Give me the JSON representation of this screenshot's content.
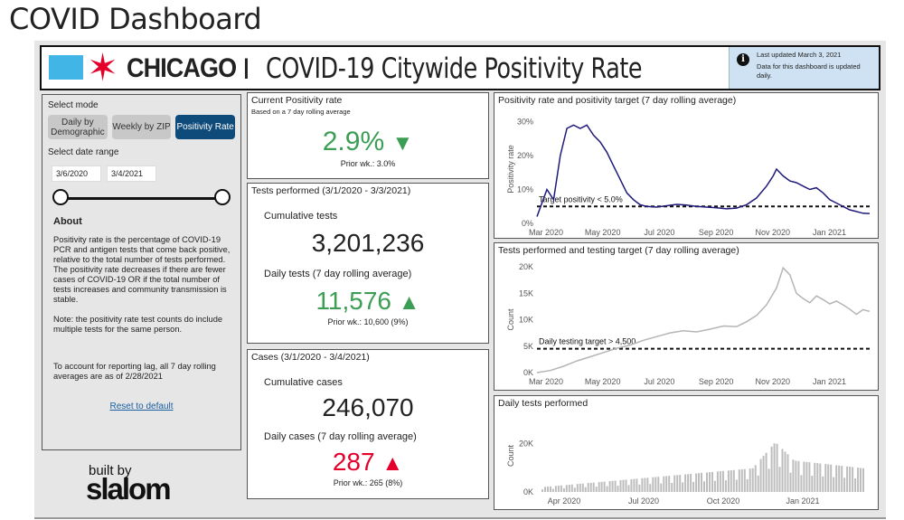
{
  "page": {
    "title": "COVID Dashboard"
  },
  "header": {
    "city": "CHICAGO",
    "separator": "I",
    "title": "COVID-19 Citywide Positivity Rate",
    "last_updated": "Last updated March 3, 2021",
    "update_note": "Data for this dashboard is updated daily."
  },
  "sidebar": {
    "mode_label": "Select mode",
    "modes": [
      {
        "label": "Daily by Demographic",
        "active": false
      },
      {
        "label": "Weekly by ZIP",
        "active": false
      },
      {
        "label": "Positivity Rate",
        "active": true
      }
    ],
    "date_label": "Select date range",
    "date_start": "3/6/2020",
    "date_end": "3/4/2021",
    "about_title": "About",
    "about_text": "Positivity rate is the percentage of COVID-19 PCR and antigen tests that come back positive, relative to the total number of tests performed.  The positivity rate decreases if there are fewer cases of COVID-19 OR if the total number of tests increases and community transmission is stable.",
    "note_text": "Note: the positivity rate test counts do include multiple tests for the same person.",
    "lag_text": "To account for reporting lag, all 7 day rolling averages are as of 2/28/2021",
    "reset_label": "Reset to default"
  },
  "positivity": {
    "title": "Current Positivity rate",
    "subtitle": "Based on a 7 day rolling average",
    "value": "2.9%",
    "arrow": "▼",
    "prior": "Prior wk.: 3.0%"
  },
  "tests": {
    "title": "Tests performed (3/1/2020 - 3/3/2021)",
    "cumulative_label": "Cumulative tests",
    "cumulative_value": "3,201,236",
    "daily_label": "Daily tests (7 day rolling average)",
    "daily_value": "11,576",
    "arrow": "▲",
    "prior": "Prior wk.: 10,600 (9%)"
  },
  "cases": {
    "title": "Cases (3/1/2020 - 3/4/2021)",
    "cumulative_label": "Cumulative cases",
    "cumulative_value": "246,070",
    "daily_label": "Daily cases (7 day rolling average)",
    "daily_value": "287",
    "arrow": "▲",
    "prior": "Prior wk.: 265 (8%)"
  },
  "branding": {
    "built_by": "built by",
    "company": "slalom"
  },
  "colors": {
    "green": "#3c9d55",
    "red": "#e4002b",
    "navy": "#1f1a7a",
    "active_btn": "#0e4a7a",
    "chicago_star": "#e4002b",
    "chicago_blue": "#41b6e6"
  },
  "chart_data": [
    {
      "type": "line",
      "title": "Positivity rate and positivity target (7 day rolling average)",
      "ylabel": "Positivity rate",
      "xlabel": "",
      "x_ticks": [
        "Mar 2020",
        "May 2020",
        "Jul 2020",
        "Sep 2020",
        "Nov 2020",
        "Jan 2021"
      ],
      "y_ticks": [
        "0%",
        "10%",
        "20%",
        "30%"
      ],
      "ylim": [
        0,
        32
      ],
      "target": {
        "label": "Target positivity < 5.0%",
        "value": 5
      },
      "series": [
        {
          "values": [
            [
              0,
              2
            ],
            [
              3,
              10
            ],
            [
              5,
              7
            ],
            [
              7,
              20
            ],
            [
              9,
              28
            ],
            [
              11,
              29
            ],
            [
              13,
              28
            ],
            [
              15,
              29
            ],
            [
              17,
              26
            ],
            [
              19,
              24
            ],
            [
              21,
              21
            ],
            [
              23,
              17
            ],
            [
              25,
              13
            ],
            [
              27,
              9
            ],
            [
              29,
              7
            ],
            [
              31,
              5.5
            ],
            [
              33,
              5
            ],
            [
              36,
              4.8
            ],
            [
              39,
              5.2
            ],
            [
              42,
              5.6
            ],
            [
              45,
              5.4
            ],
            [
              48,
              5
            ],
            [
              51,
              4.8
            ],
            [
              54,
              4.6
            ],
            [
              57,
              4.3
            ],
            [
              60,
              4.5
            ],
            [
              63,
              5.5
            ],
            [
              66,
              7.5
            ],
            [
              69,
              11
            ],
            [
              71,
              14
            ],
            [
              72,
              16
            ],
            [
              74,
              14
            ],
            [
              76,
              12.5
            ],
            [
              78,
              12
            ],
            [
              80,
              11
            ],
            [
              82,
              10
            ],
            [
              84,
              10.5
            ],
            [
              86,
              9
            ],
            [
              88,
              7
            ],
            [
              90,
              6
            ],
            [
              92,
              5
            ],
            [
              94,
              4
            ],
            [
              96,
              3.5
            ],
            [
              98,
              3
            ],
            [
              100,
              2.9
            ]
          ]
        }
      ]
    },
    {
      "type": "line",
      "title": "Tests performed and testing target (7 day rolling average)",
      "ylabel": "Count",
      "xlabel": "",
      "x_ticks": [
        "Mar 2020",
        "May 2020",
        "Jul 2020",
        "Sep 2020",
        "Nov 2020",
        "Jan 2021"
      ],
      "y_ticks": [
        "0K",
        "5K",
        "10K",
        "15K",
        "20K"
      ],
      "ylim": [
        0,
        20000
      ],
      "target": {
        "label": "Daily testing target > 4,500",
        "value": 4500
      },
      "series": [
        {
          "values": [
            [
              0,
              0
            ],
            [
              4,
              400
            ],
            [
              8,
              1200
            ],
            [
              12,
              2200
            ],
            [
              16,
              3000
            ],
            [
              20,
              3800
            ],
            [
              24,
              4600
            ],
            [
              28,
              5200
            ],
            [
              32,
              6100
            ],
            [
              36,
              6800
            ],
            [
              40,
              7500
            ],
            [
              44,
              7900
            ],
            [
              48,
              7700
            ],
            [
              52,
              8200
            ],
            [
              56,
              8800
            ],
            [
              60,
              8700
            ],
            [
              63,
              9600
            ],
            [
              66,
              10800
            ],
            [
              69,
              12800
            ],
            [
              72,
              16000
            ],
            [
              74,
              19800
            ],
            [
              76,
              18500
            ],
            [
              78,
              15000
            ],
            [
              80,
              14000
            ],
            [
              82,
              13200
            ],
            [
              84,
              14500
            ],
            [
              86,
              13800
            ],
            [
              88,
              13000
            ],
            [
              90,
              13500
            ],
            [
              92,
              12800
            ],
            [
              94,
              12000
            ],
            [
              96,
              11000
            ],
            [
              98,
              11900
            ],
            [
              100,
              11576
            ]
          ]
        }
      ]
    },
    {
      "type": "bar",
      "title": "Daily tests performed",
      "ylabel": "Count",
      "x_ticks": [
        "Apr 2020",
        "Jul 2020",
        "Oct 2020",
        "Jan 2021"
      ],
      "y_ticks": [
        "0K",
        "20K"
      ],
      "ylim": [
        0,
        30000
      ]
    }
  ]
}
